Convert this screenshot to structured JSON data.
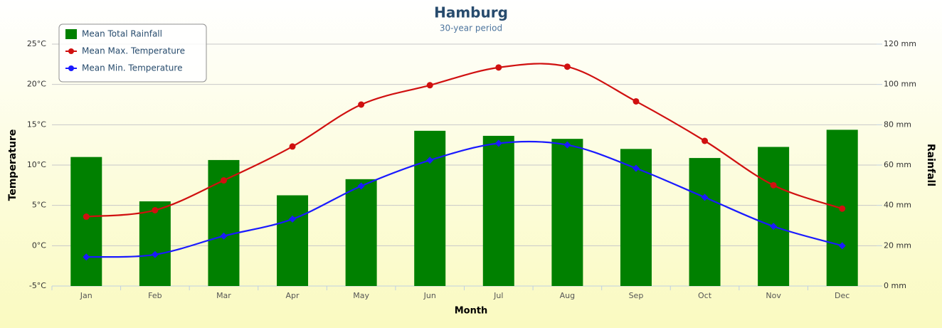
{
  "chart_data": {
    "type": "combo",
    "title": "Hamburg",
    "subtitle": "30-year period",
    "x_label": "Month",
    "y_label": "Temperature",
    "y2_label": "Rainfall",
    "categories": [
      "Jan",
      "Feb",
      "Mar",
      "Apr",
      "May",
      "Jun",
      "Jul",
      "Aug",
      "Sep",
      "Oct",
      "Nov",
      "Dec"
    ],
    "ylim": [
      -5,
      25
    ],
    "yticks": [
      {
        "value": -5,
        "label": "-5°C"
      },
      {
        "value": 0,
        "label": "0°C"
      },
      {
        "value": 5,
        "label": "5°C"
      },
      {
        "value": 10,
        "label": "10°C"
      },
      {
        "value": 15,
        "label": "15°C"
      },
      {
        "value": 20,
        "label": "20°C"
      },
      {
        "value": 25,
        "label": "25°C"
      }
    ],
    "y2lim": [
      0,
      120
    ],
    "y2ticks": [
      {
        "value": 0,
        "label": "0 mm"
      },
      {
        "value": 20,
        "label": "20 mm"
      },
      {
        "value": 40,
        "label": "40 mm"
      },
      {
        "value": 60,
        "label": "60 mm"
      },
      {
        "value": 80,
        "label": "80 mm"
      },
      {
        "value": 100,
        "label": "100 mm"
      },
      {
        "value": 120,
        "label": "120 mm"
      }
    ],
    "grid": true,
    "legend": "top-left",
    "series": [
      {
        "name": "Mean Total Rainfall",
        "type": "bar",
        "axis": "y2",
        "color": "#008000",
        "values": [
          64,
          42,
          62.5,
          45,
          53,
          77,
          74.5,
          73,
          68,
          63.5,
          69,
          77.5
        ]
      },
      {
        "name": "Mean Max. Temperature",
        "type": "line",
        "color": "#d01010",
        "values": [
          3.6,
          4.4,
          8.1,
          12.3,
          17.5,
          19.9,
          22.1,
          22.2,
          17.9,
          13.0,
          7.5,
          4.6
        ]
      },
      {
        "name": "Mean Min. Temperature",
        "type": "line",
        "color": "#1a1aff",
        "values": [
          -1.4,
          -1.1,
          1.2,
          3.3,
          7.4,
          10.6,
          12.7,
          12.5,
          9.6,
          6.0,
          2.4,
          0.0
        ]
      }
    ]
  }
}
